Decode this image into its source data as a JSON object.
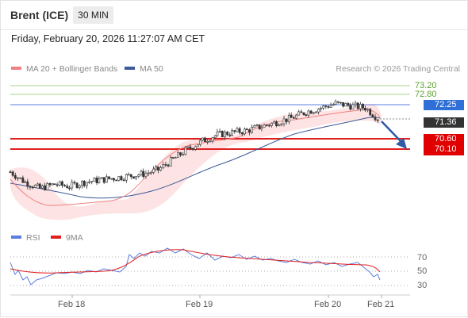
{
  "header": {
    "instrument": "Brent (ICE)",
    "timeframe": "30 MIN",
    "timestamp": "Friday, February 20, 2026 11:27:07 AM CET"
  },
  "legend": {
    "ma20": "MA 20 + Bollinger Bands",
    "ma50": "MA 50",
    "credit": "Research © 2026 Trading Central"
  },
  "levels": {
    "resistance2": "73.20",
    "resistance1": "72.80",
    "pivot": "72.25",
    "last": "71.36",
    "support1": "70.60",
    "support2": "70.10"
  },
  "indicator": {
    "rsi": "RSI",
    "ma9": "9MA",
    "ticks": [
      "70",
      "50",
      "30"
    ]
  },
  "xaxis": [
    "Feb 18",
    "Feb 19",
    "Feb 20",
    "Feb 21"
  ],
  "colors": {
    "ma20": "#f08080",
    "ma50": "#3d5a99",
    "pivot_line": "#5b7fe0",
    "resistance_line": "#a8d58a",
    "support_line": "#e02020",
    "support_box": "#e00000",
    "pivot_box": "#2f6fd8",
    "last_box": "#333333",
    "bull": "#ffffff",
    "bear": "#333333"
  },
  "chart_data": {
    "type": "candlestick",
    "title": "Brent (ICE)",
    "timeframe": "30 MIN",
    "x_labels": [
      "Feb 18",
      "Feb 19",
      "Feb 20",
      "Feb 21"
    ],
    "key_levels": {
      "73.20": "resistance",
      "72.80": "resistance",
      "72.25": "pivot",
      "71.36": "last",
      "70.60": "support",
      "70.10": "support"
    },
    "price_path": [
      [
        0,
        69.0
      ],
      [
        10,
        68.5
      ],
      [
        20,
        68.2
      ],
      [
        30,
        68.4
      ],
      [
        40,
        68.3
      ],
      [
        50,
        68.5
      ],
      [
        60,
        68.6
      ],
      [
        70,
        68.7
      ],
      [
        80,
        68.8
      ],
      [
        90,
        68.9
      ],
      [
        100,
        69.1
      ],
      [
        110,
        69.6
      ],
      [
        120,
        70.1
      ],
      [
        130,
        70.5
      ],
      [
        140,
        70.8
      ],
      [
        150,
        70.9
      ],
      [
        160,
        71.0
      ],
      [
        170,
        71.2
      ],
      [
        180,
        71.4
      ],
      [
        190,
        71.6
      ],
      [
        200,
        71.9
      ],
      [
        210,
        72.1
      ],
      [
        220,
        72.3
      ],
      [
        230,
        72.2
      ],
      [
        240,
        72.1
      ],
      [
        250,
        71.5
      ]
    ],
    "indicator": {
      "name": "RSI",
      "ma_name": "9MA",
      "ticks": [
        70,
        50,
        30
      ]
    }
  }
}
